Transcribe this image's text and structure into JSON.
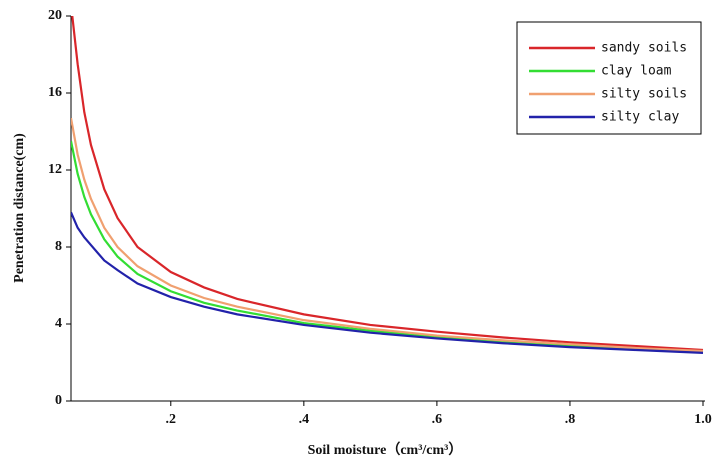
{
  "chart_data": {
    "type": "line",
    "x_label": "Soil moisture（cm³/cm³）",
    "y_label": "Penetration distance(cm)",
    "x": [
      0.05,
      0.06,
      0.07,
      0.08,
      0.1,
      0.12,
      0.15,
      0.2,
      0.25,
      0.3,
      0.4,
      0.5,
      0.6,
      0.7,
      0.8,
      0.9,
      1.0
    ],
    "series": [
      {
        "name": "sandy soils",
        "color": "#d9262a",
        "values": [
          20.6,
          17.5,
          15,
          13.3,
          11,
          9.5,
          8,
          6.7,
          5.9,
          5.3,
          4.5,
          3.95,
          3.6,
          3.3,
          3.05,
          2.85,
          2.65
        ]
      },
      {
        "name": "clay loam",
        "color": "#33dd33",
        "values": [
          13.5,
          11.8,
          10.6,
          9.7,
          8.4,
          7.5,
          6.6,
          5.7,
          5.1,
          4.7,
          4.05,
          3.65,
          3.3,
          3.05,
          2.85,
          2.7,
          2.55
        ]
      },
      {
        "name": "silty soils",
        "color": "#f0a070",
        "values": [
          14.7,
          12.8,
          11.5,
          10.5,
          9.0,
          8.0,
          7.0,
          6.0,
          5.35,
          4.9,
          4.2,
          3.75,
          3.4,
          3.15,
          2.95,
          2.75,
          2.6
        ]
      },
      {
        "name": "silty clay",
        "color": "#2222aa",
        "values": [
          9.8,
          9.0,
          8.5,
          8.1,
          7.3,
          6.8,
          6.1,
          5.4,
          4.9,
          4.5,
          3.95,
          3.55,
          3.25,
          3.0,
          2.8,
          2.65,
          2.5
        ]
      }
    ],
    "xlim": [
      0.05,
      1.0
    ],
    "xticks": [
      {
        "value": 0.2,
        "label": ".2"
      },
      {
        "value": 0.4,
        "label": ".4"
      },
      {
        "value": 0.6,
        "label": ".6"
      },
      {
        "value": 0.8,
        "label": ".8"
      },
      {
        "value": 1.0,
        "label": "1.0"
      }
    ],
    "ylim": [
      0,
      20
    ],
    "yticks": [
      0,
      4,
      8,
      12,
      16,
      20
    ],
    "legend": "upper right"
  }
}
